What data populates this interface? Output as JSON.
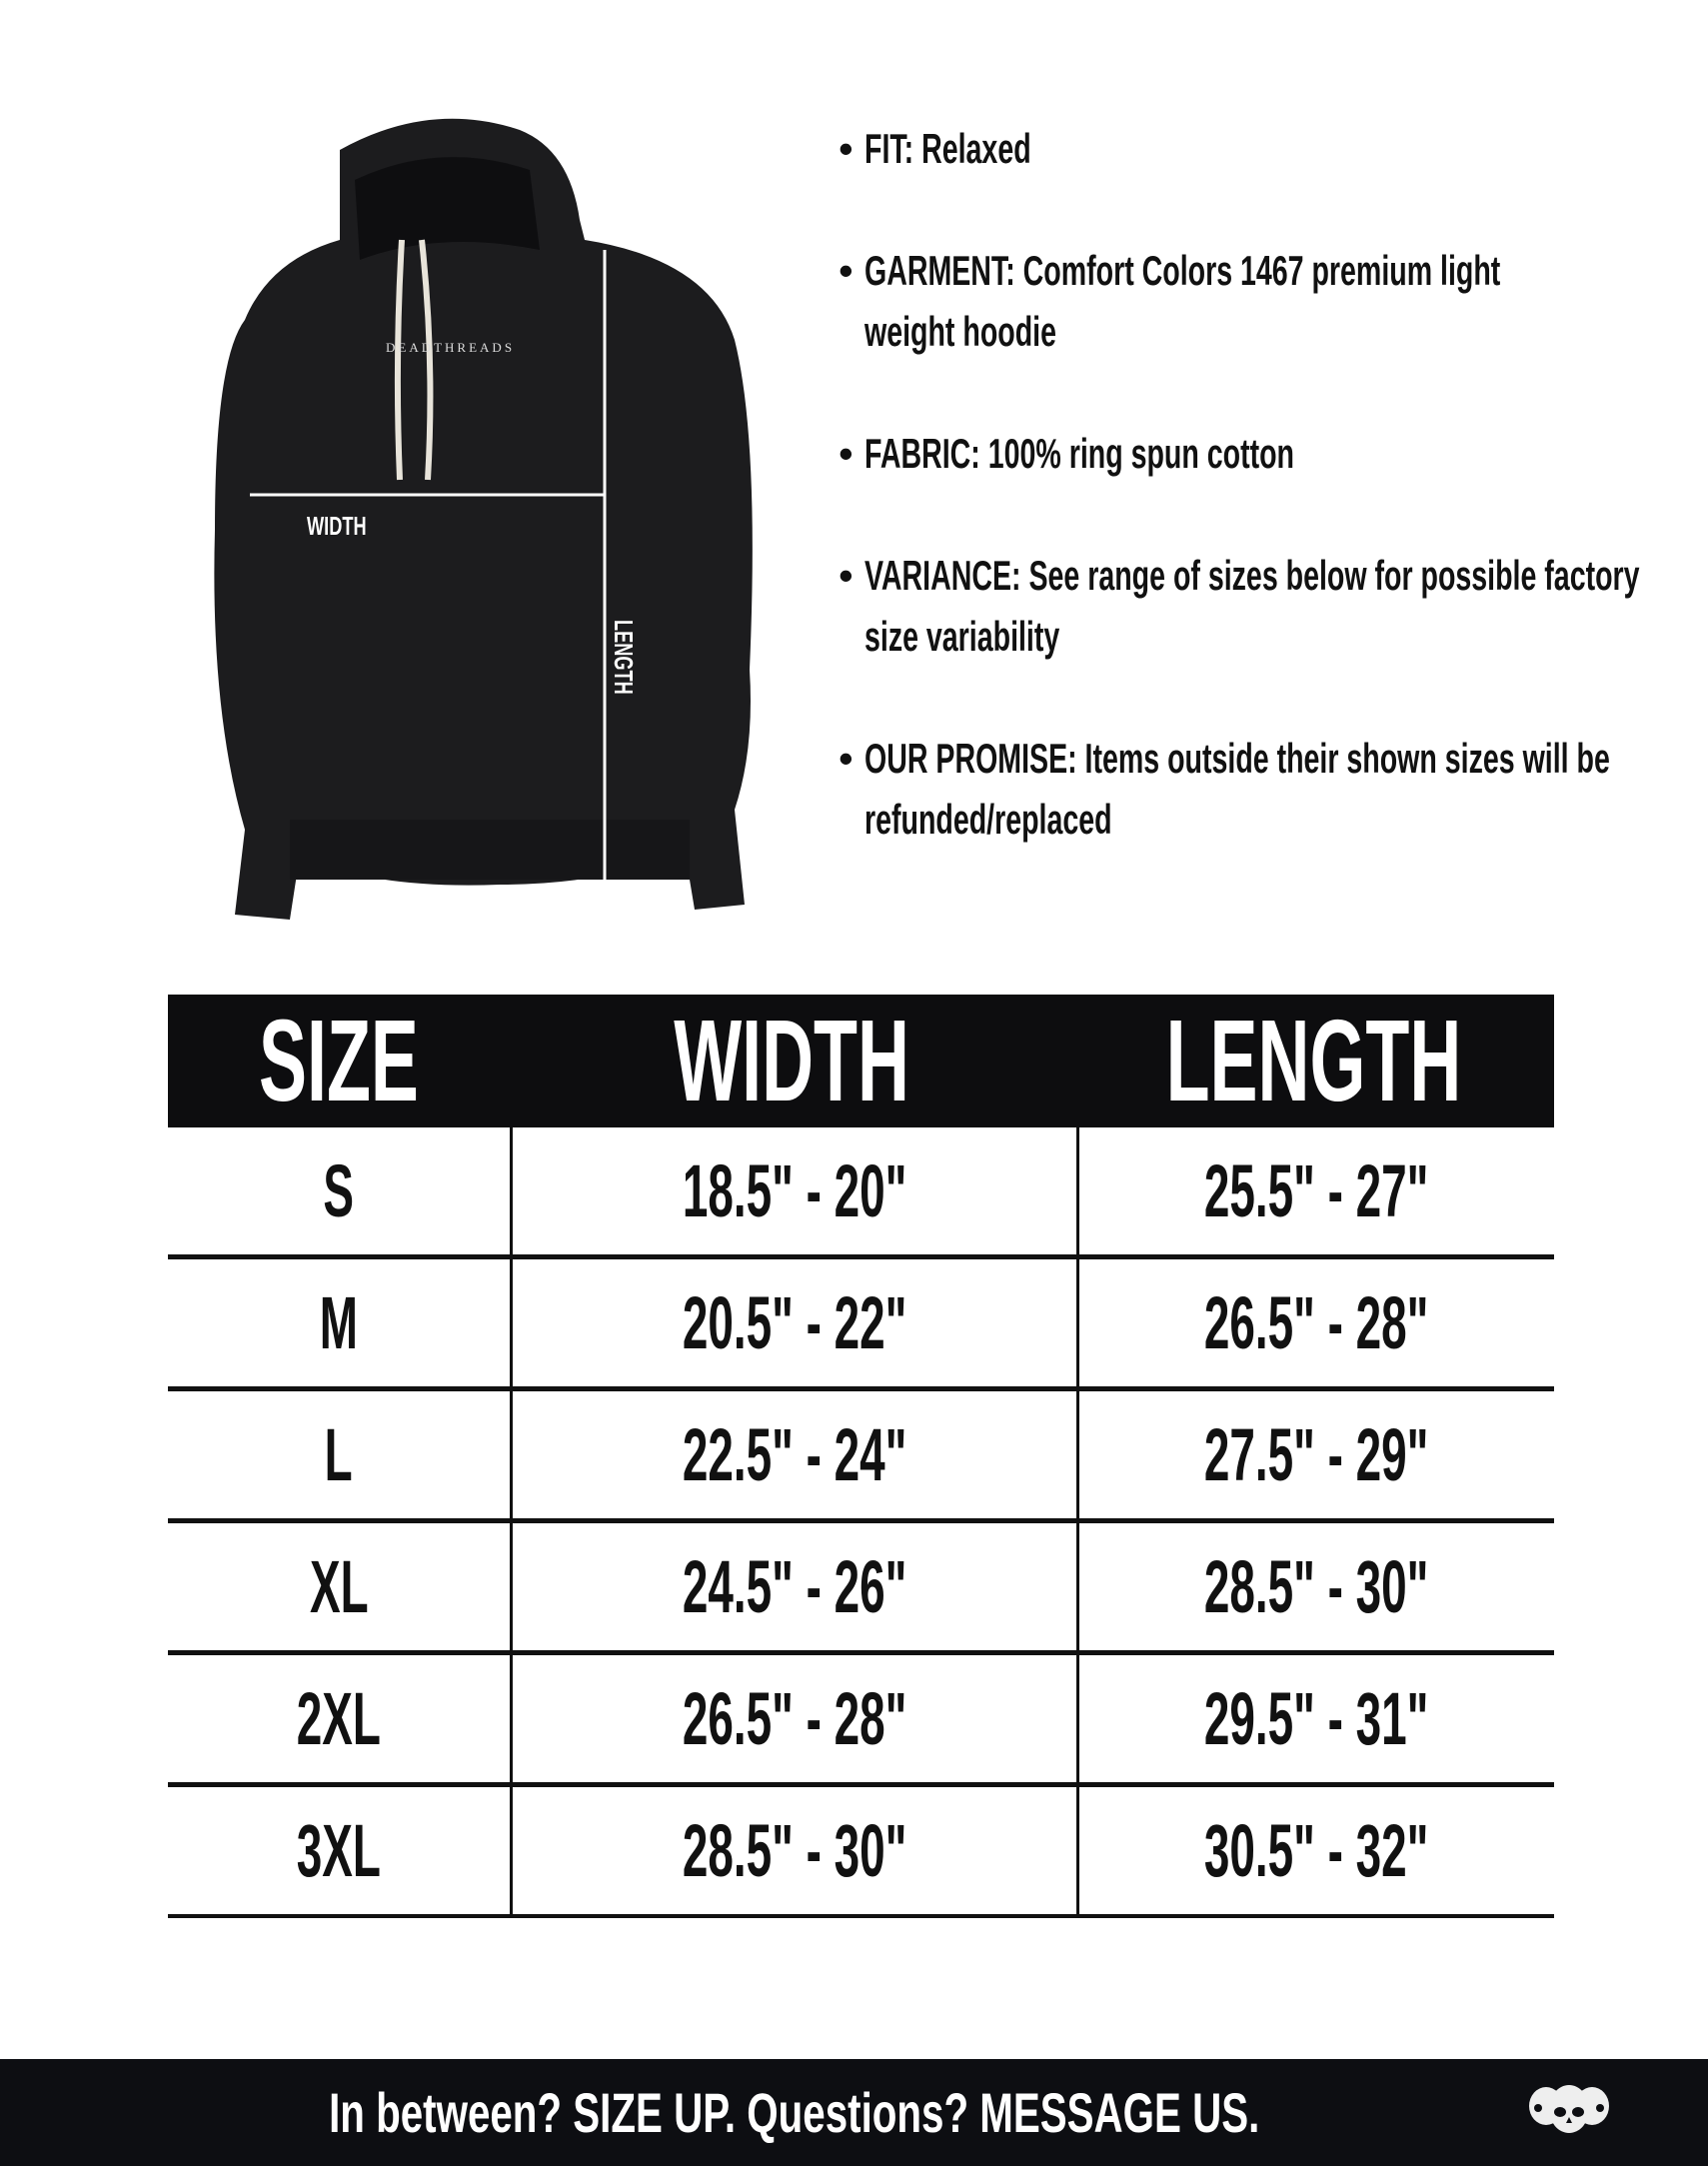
{
  "product_image": {
    "brand_print": "DEADTHREADS",
    "width_label": "WIDTH",
    "length_label": "LENGTH",
    "garment_color": "#1c1c1e",
    "drawstring_color": "#e8e4da"
  },
  "bullets": [
    {
      "text": "FIT: Relaxed"
    },
    {
      "text": "GARMENT: Comfort Colors 1467 premium light weight hoodie"
    },
    {
      "text": "FABRIC: 100% ring spun cotton"
    },
    {
      "text": "VARIANCE: See range of sizes below for possible factory size variability"
    },
    {
      "text": "OUR PROMISE: Items outside their shown sizes will be refunded/replaced"
    }
  ],
  "table": {
    "headers": [
      "SIZE",
      "WIDTH",
      "LENGTH"
    ],
    "rows": [
      [
        "S",
        "18.5\" - 20\"",
        "25.5\" - 27\""
      ],
      [
        "M",
        "20.5\" - 22\"",
        "26.5\" - 28\""
      ],
      [
        "L",
        "22.5\" - 24\"",
        "27.5\" - 29\""
      ],
      [
        "XL",
        "24.5\" - 26\"",
        "28.5\" - 30\""
      ],
      [
        "2XL",
        "26.5\" - 28\"",
        "29.5\" - 31\""
      ],
      [
        "3XL",
        "28.5\" - 30\"",
        "30.5\" - 32\""
      ]
    ]
  },
  "footer": {
    "message": "In between? SIZE UP. Questions? MESSAGE US.",
    "logo_icon": "three-skulls-icon"
  }
}
